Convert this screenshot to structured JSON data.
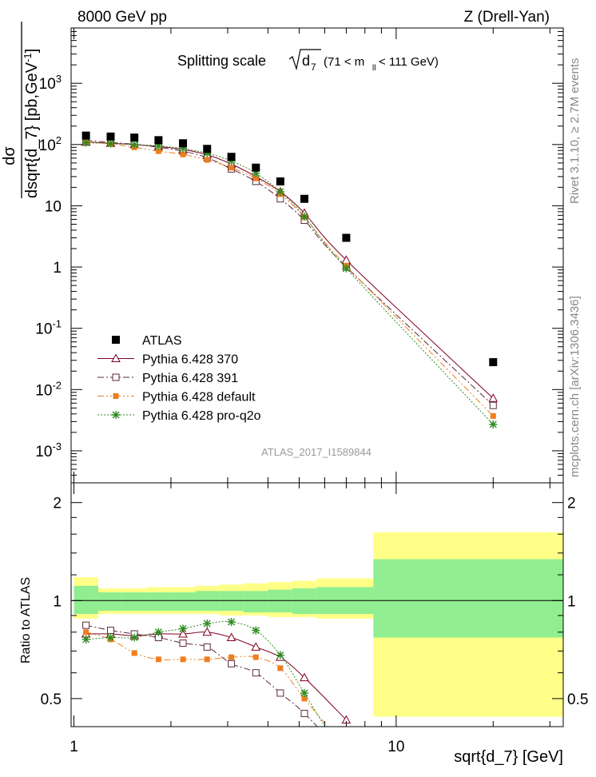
{
  "header": {
    "left": "8000 GeV pp",
    "right": "Z (Drell-Yan)"
  },
  "title": {
    "main": "Splitting scale",
    "symbol": "d",
    "symbol_sub": "7",
    "range_pre": "(71 < m",
    "range_sub": "ll",
    "range_post": " < 111 GeV)"
  },
  "side_labels": {
    "rivet": "Rivet 3.1.10, ≥ 2.7M events",
    "mcplots": "mcplots.cern.ch [arXiv:1306.3436]"
  },
  "watermark": "ATLAS_2017_I1589844",
  "ylabel_main": {
    "num": "dσ",
    "den": "dsqrt{d_7} [pb,GeV",
    "den_sup": "-1",
    "den_close": "]"
  },
  "ylabel_ratio": "Ratio to ATLAS",
  "xlabel": "sqrt{d_7} [GeV]",
  "legend": [
    {
      "label": "ATLAS",
      "color": "#000000",
      "marker": "filled-square",
      "line": "none"
    },
    {
      "label": "Pythia 6.428 370",
      "color": "#800020",
      "marker": "open-triangle",
      "line": "solid"
    },
    {
      "label": "Pythia 6.428 391",
      "color": "#5a2a3a",
      "marker": "open-square",
      "line": "dashdot"
    },
    {
      "label": "Pythia 6.428 default",
      "color": "#f07d1e",
      "marker": "filled-square-small",
      "line": "dashdotdot"
    },
    {
      "label": "Pythia 6.428 pro-q2o",
      "color": "#2e8b20",
      "marker": "star",
      "line": "dotted"
    }
  ],
  "colors": {
    "band_inner": "#90ee90",
    "band_outer": "#ffff88"
  },
  "chart_data": {
    "type": "line",
    "x_scale": "log",
    "y_scale": "log",
    "xlim": [
      0.98,
      33
    ],
    "ylim_main": [
      0.0003,
      8000
    ],
    "ylim_ratio": [
      0.41,
      2.3
    ],
    "x_ticks": [
      "1",
      "10"
    ],
    "y_ticks_main": [
      "10^-3",
      "10^-2",
      "10^-1",
      "1",
      "10",
      "10^2",
      "10^3"
    ],
    "y_ticks_ratio": [
      "0.5",
      "1",
      "2"
    ],
    "bin_edges": [
      1.0,
      1.19,
      1.41,
      1.68,
      2.0,
      2.38,
      2.83,
      3.36,
      4.0,
      4.76,
      5.66,
      8.5,
      33
    ],
    "x": [
      1.09,
      1.3,
      1.54,
      1.83,
      2.18,
      2.59,
      3.08,
      3.67,
      4.37,
      5.19,
      7.0,
      20.0
    ],
    "series": [
      {
        "name": "ATLAS",
        "values": [
          140,
          135,
          130,
          118,
          105,
          85,
          63,
          42,
          25,
          13,
          3.0,
          0.028
        ]
      },
      {
        "name": "Pythia 6.428 370",
        "values": [
          110,
          105,
          100,
          93,
          83,
          68,
          48,
          30,
          17,
          7.6,
          1.3,
          0.0072
        ]
      },
      {
        "name": "Pythia 6.428 391",
        "values": [
          117,
          108,
          101,
          90,
          78,
          61,
          40,
          25,
          13,
          5.8,
          1.0,
          0.0055
        ]
      },
      {
        "name": "Pythia 6.428 default",
        "values": [
          112,
          102,
          90,
          78,
          69,
          56,
          42,
          28,
          15.5,
          6.5,
          1.05,
          0.0037
        ]
      },
      {
        "name": "Pythia 6.428 pro-q2o",
        "values": [
          107,
          104,
          100,
          95,
          86,
          72,
          54,
          34,
          17,
          6.7,
          0.95,
          0.0027
        ]
      }
    ],
    "ratio_series": [
      {
        "name": "Pythia 6.428 370",
        "values": [
          0.79,
          0.79,
          0.78,
          0.79,
          0.79,
          0.8,
          0.77,
          0.72,
          0.67,
          0.58,
          0.43
        ]
      },
      {
        "name": "Pythia 6.428 391",
        "values": [
          0.84,
          0.81,
          0.79,
          0.77,
          0.74,
          0.72,
          0.64,
          0.6,
          0.52,
          0.45,
          0.33
        ]
      },
      {
        "name": "Pythia 6.428 default",
        "values": [
          0.8,
          0.76,
          0.69,
          0.66,
          0.66,
          0.66,
          0.67,
          0.67,
          0.62,
          0.5,
          0.35
        ]
      },
      {
        "name": "Pythia 6.428 pro-q2o",
        "values": [
          0.76,
          0.77,
          0.77,
          0.8,
          0.82,
          0.85,
          0.86,
          0.81,
          0.68,
          0.52,
          0.32
        ]
      }
    ],
    "band_inner": [
      [
        0.91,
        1.11
      ],
      [
        0.93,
        1.06
      ],
      [
        0.93,
        1.06
      ],
      [
        0.93,
        1.06
      ],
      [
        0.93,
        1.06
      ],
      [
        0.93,
        1.07
      ],
      [
        0.93,
        1.07
      ],
      [
        0.92,
        1.07
      ],
      [
        0.92,
        1.08
      ],
      [
        0.91,
        1.09
      ],
      [
        0.91,
        1.1
      ],
      [
        0.77,
        1.34
      ]
    ],
    "band_outer": [
      [
        0.88,
        1.18
      ],
      [
        0.91,
        1.09
      ],
      [
        0.91,
        1.09
      ],
      [
        0.91,
        1.1
      ],
      [
        0.91,
        1.1
      ],
      [
        0.91,
        1.11
      ],
      [
        0.9,
        1.12
      ],
      [
        0.9,
        1.13
      ],
      [
        0.89,
        1.14
      ],
      [
        0.89,
        1.15
      ],
      [
        0.88,
        1.17
      ],
      [
        0.44,
        1.62
      ]
    ]
  }
}
